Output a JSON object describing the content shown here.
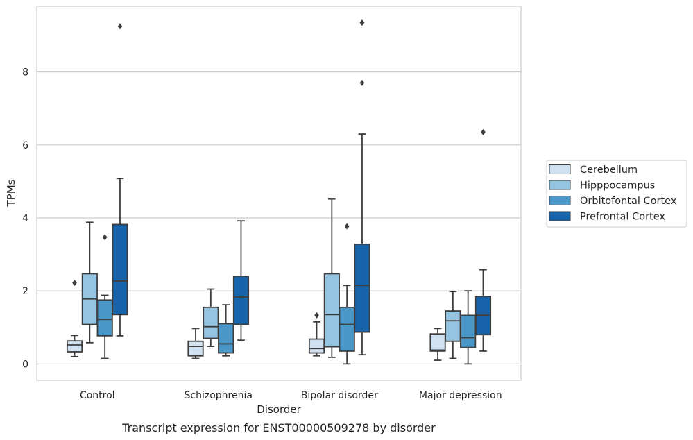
{
  "chart_data": {
    "type": "box",
    "caption": "Transcript expression for ENST00000509278 by disorder",
    "xlabel": "Disorder",
    "ylabel": "TPMs",
    "ylim": [
      -0.45,
      9.8
    ],
    "yticks": [
      0,
      2,
      4,
      6,
      8
    ],
    "ytick_labels": [
      "0",
      "2",
      "4",
      "6",
      "8"
    ],
    "grid": "horizontal",
    "legend_position": "right",
    "categories": [
      "Control",
      "Schizophrenia",
      "Bipolar disorder",
      "Major depression"
    ],
    "series": [
      {
        "name": "Cerebellum",
        "color": "#d0e1f2",
        "boxes": [
          {
            "whislo": 0.2,
            "q1": 0.33,
            "med": 0.52,
            "q3": 0.63,
            "whishi": 0.78,
            "fliers": [
              2.22
            ]
          },
          {
            "whislo": 0.15,
            "q1": 0.22,
            "med": 0.48,
            "q3": 0.62,
            "whishi": 0.97,
            "fliers": []
          },
          {
            "whislo": 0.22,
            "q1": 0.3,
            "med": 0.42,
            "q3": 0.68,
            "whishi": 1.15,
            "fliers": [
              1.33
            ]
          },
          {
            "whislo": 0.1,
            "q1": 0.35,
            "med": 0.38,
            "q3": 0.82,
            "whishi": 0.97,
            "fliers": []
          }
        ]
      },
      {
        "name": "Hipppocampus",
        "color": "#94c4df",
        "boxes": [
          {
            "whislo": 0.58,
            "q1": 1.08,
            "med": 1.78,
            "q3": 2.47,
            "whishi": 3.88,
            "fliers": []
          },
          {
            "whislo": 0.48,
            "q1": 0.7,
            "med": 1.02,
            "q3": 1.55,
            "whishi": 2.05,
            "fliers": []
          },
          {
            "whislo": 0.18,
            "q1": 0.47,
            "med": 1.35,
            "q3": 2.47,
            "whishi": 4.52,
            "fliers": []
          },
          {
            "whislo": 0.15,
            "q1": 0.62,
            "med": 1.18,
            "q3": 1.45,
            "whishi": 1.98,
            "fliers": []
          }
        ]
      },
      {
        "name": "Orbitofontal Cortex",
        "color": "#4a98c9",
        "boxes": [
          {
            "whislo": 0.15,
            "q1": 0.77,
            "med": 1.22,
            "q3": 1.75,
            "whishi": 1.88,
            "fliers": [
              3.47
            ]
          },
          {
            "whislo": 0.22,
            "q1": 0.3,
            "med": 0.55,
            "q3": 1.1,
            "whishi": 1.62,
            "fliers": []
          },
          {
            "whislo": 0.0,
            "q1": 0.35,
            "med": 1.08,
            "q3": 1.55,
            "whishi": 2.15,
            "fliers": [
              3.77
            ]
          },
          {
            "whislo": 0.0,
            "q1": 0.45,
            "med": 0.72,
            "q3": 1.33,
            "whishi": 2.0,
            "fliers": []
          }
        ]
      },
      {
        "name": "Prefrontal Cortex",
        "color": "#1764ab",
        "boxes": [
          {
            "whislo": 0.77,
            "q1": 1.35,
            "med": 2.27,
            "q3": 3.82,
            "whishi": 5.08,
            "fliers": [
              9.25
            ]
          },
          {
            "whislo": 0.65,
            "q1": 1.08,
            "med": 1.83,
            "q3": 2.4,
            "whishi": 3.92,
            "fliers": []
          },
          {
            "whislo": 0.25,
            "q1": 0.87,
            "med": 2.15,
            "q3": 3.28,
            "whishi": 6.3,
            "fliers": [
              7.7,
              9.35
            ]
          },
          {
            "whislo": 0.35,
            "q1": 0.8,
            "med": 1.33,
            "q3": 1.85,
            "whishi": 2.58,
            "fliers": [
              6.35
            ]
          }
        ]
      }
    ]
  }
}
